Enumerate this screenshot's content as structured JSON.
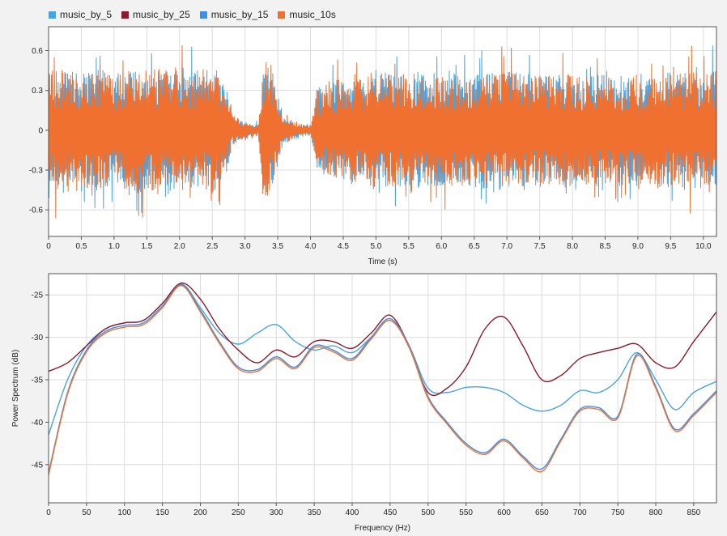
{
  "legend": {
    "items": [
      {
        "label": "music_by_5",
        "color": "#4aa3df"
      },
      {
        "label": "music_by_25",
        "color": "#8b1a2b"
      },
      {
        "label": "music_by_15",
        "color": "#3b8fe8"
      },
      {
        "label": "music_10s",
        "color": "#f07030"
      }
    ]
  },
  "chart_data": [
    {
      "type": "line",
      "name": "waveform",
      "xlabel": "Time (s)",
      "ylabel": "",
      "xlim": [
        0,
        10.2
      ],
      "ylim": [
        -0.8,
        0.78
      ],
      "x_ticks": [
        0,
        0.5,
        1.0,
        1.5,
        2.0,
        2.5,
        3.0,
        3.5,
        4.0,
        4.5,
        5.0,
        5.5,
        6.0,
        6.5,
        7.0,
        7.5,
        8.0,
        8.5,
        9.0,
        9.5,
        10.0
      ],
      "x_tick_labels": [
        "0",
        "0.5",
        "1.0",
        "1.5",
        "2.0",
        "2.5",
        "3.0",
        "3.5",
        "4.0",
        "4.5",
        "5.0",
        "5.5",
        "6.0",
        "6.5",
        "7.0",
        "7.5",
        "8.0",
        "8.5",
        "9.0",
        "9.5",
        "10.0"
      ],
      "y_ticks": [
        0.6,
        0.3,
        0,
        -0.3,
        -0.6
      ],
      "y_tick_labels": [
        "0.6",
        "0.3",
        "0",
        "-0.3",
        "-0.6"
      ],
      "grid": true,
      "envelope": {
        "t": [
          0,
          0.3,
          0.5,
          0.8,
          1.0,
          1.3,
          1.5,
          1.8,
          2.0,
          2.3,
          2.5,
          2.7,
          2.8,
          3.0,
          3.2,
          3.3,
          3.4,
          3.5,
          3.6,
          3.8,
          4.0,
          4.1,
          4.3,
          4.5,
          4.8,
          5.0,
          5.5,
          6.0,
          6.5,
          7.0,
          7.5,
          8.0,
          8.5,
          9.0,
          9.5,
          10.0,
          10.2
        ],
        "amplitude": [
          0.45,
          0.48,
          0.42,
          0.5,
          0.4,
          0.5,
          0.45,
          0.5,
          0.48,
          0.42,
          0.5,
          0.35,
          0.12,
          0.06,
          0.04,
          0.55,
          0.45,
          0.25,
          0.1,
          0.05,
          0.03,
          0.3,
          0.35,
          0.4,
          0.4,
          0.45,
          0.42,
          0.42,
          0.42,
          0.45,
          0.42,
          0.42,
          0.4,
          0.42,
          0.42,
          0.45,
          0.45
        ]
      }
    },
    {
      "type": "line",
      "name": "power-spectrum",
      "xlabel": "Frequency (Hz)",
      "ylabel": "Power Spectrum (dB)",
      "xlim": [
        0,
        880
      ],
      "ylim": [
        -49.5,
        -22.5
      ],
      "x_ticks": [
        0,
        50,
        100,
        150,
        200,
        250,
        300,
        350,
        400,
        450,
        500,
        550,
        600,
        650,
        700,
        750,
        800,
        850
      ],
      "x_tick_labels": [
        "0",
        "50",
        "100",
        "150",
        "200",
        "250",
        "300",
        "350",
        "400",
        "450",
        "500",
        "550",
        "600",
        "650",
        "700",
        "750",
        "800",
        "850"
      ],
      "y_ticks": [
        -25,
        -30,
        -35,
        -40,
        -45
      ],
      "y_tick_labels": [
        "-25",
        "-30",
        "-35",
        "-40",
        "-45"
      ],
      "grid": true,
      "x": [
        0,
        25,
        50,
        75,
        100,
        125,
        150,
        175,
        200,
        225,
        250,
        275,
        300,
        325,
        350,
        375,
        400,
        425,
        450,
        475,
        500,
        525,
        550,
        575,
        600,
        625,
        650,
        675,
        700,
        725,
        750,
        775,
        800,
        825,
        850,
        880
      ],
      "series": [
        {
          "name": "music_by_5",
          "color": "#4aa3df",
          "values": [
            -41.5,
            -35,
            -31,
            -29,
            -28.3,
            -28,
            -26,
            -23.7,
            -26.5,
            -29.5,
            -30.8,
            -29.5,
            -28.5,
            -30.5,
            -31.5,
            -31,
            -31.8,
            -30,
            -28,
            -31,
            -36,
            -36.5,
            -35.9,
            -35.9,
            -36.5,
            -38,
            -38.7,
            -38,
            -36.3,
            -36.5,
            -35,
            -31.8,
            -35,
            -38.5,
            -36.5,
            -35.2
          ]
        },
        {
          "name": "music_by_25",
          "color": "#8b1a2b",
          "values": [
            -34,
            -33,
            -31,
            -29,
            -28.3,
            -28,
            -26,
            -23.6,
            -25.5,
            -29,
            -31.5,
            -33,
            -31.5,
            -32.3,
            -30.5,
            -30.5,
            -31.3,
            -29.5,
            -27.4,
            -31,
            -36.5,
            -36,
            -33.5,
            -29,
            -27.6,
            -31,
            -35,
            -34.5,
            -32.5,
            -31.8,
            -31.3,
            -30.8,
            -33,
            -33.5,
            -30.5,
            -27
          ]
        },
        {
          "name": "music_by_15",
          "color": "#3b8fe8",
          "values": [
            -46,
            -36.5,
            -31.5,
            -29.3,
            -28.6,
            -28.3,
            -26.3,
            -23.8,
            -26.8,
            -30.5,
            -33.5,
            -33.8,
            -32.3,
            -33.5,
            -31,
            -31.5,
            -32.5,
            -30,
            -27.8,
            -31,
            -37,
            -40,
            -42.5,
            -43.6,
            -42,
            -44,
            -45.5,
            -42,
            -38.5,
            -38.3,
            -39.3,
            -32,
            -35.8,
            -40.8,
            -39,
            -36.3
          ]
        },
        {
          "name": "music_10s",
          "color": "#f07030",
          "values": [
            -46.2,
            -36.7,
            -31.7,
            -29.5,
            -28.8,
            -28.5,
            -26.5,
            -23.9,
            -27,
            -30.7,
            -33.7,
            -34,
            -32.5,
            -33.7,
            -31.2,
            -31.7,
            -32.7,
            -30.2,
            -28,
            -31.2,
            -37.2,
            -40.2,
            -42.7,
            -43.8,
            -42.2,
            -44.2,
            -45.8,
            -42.2,
            -38.7,
            -38.5,
            -39.5,
            -32.2,
            -36,
            -41,
            -39.2,
            -36.5
          ]
        }
      ]
    }
  ]
}
